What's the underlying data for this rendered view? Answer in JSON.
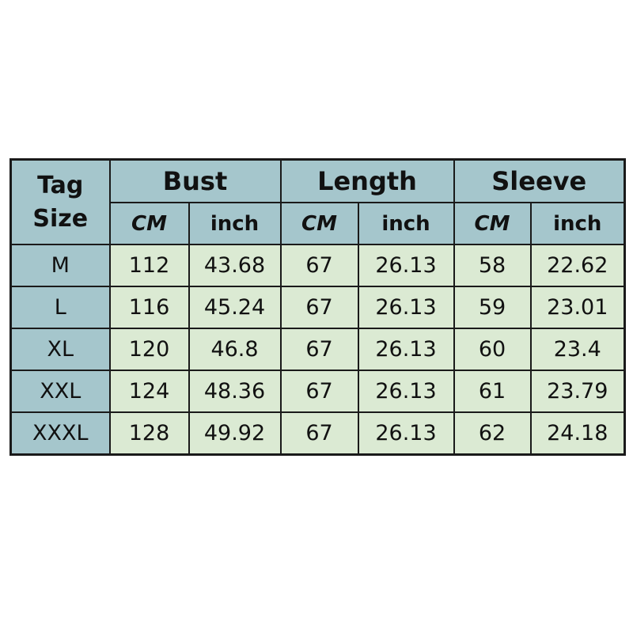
{
  "chart_data": {
    "type": "table",
    "header": {
      "tag_size": [
        "Tag",
        "Size"
      ],
      "groups": [
        "Bust",
        "Length",
        "Sleeve"
      ],
      "units": [
        "CM",
        "inch",
        "CM",
        "inch",
        "CM",
        "inch"
      ]
    },
    "rows": [
      [
        "M",
        "112",
        "43.68",
        "67",
        "26.13",
        "58",
        "22.62"
      ],
      [
        "L",
        "116",
        "45.24",
        "67",
        "26.13",
        "59",
        "23.01"
      ],
      [
        "XL",
        "120",
        "46.8",
        "67",
        "26.13",
        "60",
        "23.4"
      ],
      [
        "XXL",
        "124",
        "48.36",
        "67",
        "26.13",
        "61",
        "23.79"
      ],
      [
        "XXXL",
        "128",
        "49.92",
        "67",
        "26.13",
        "62",
        "24.18"
      ]
    ],
    "colors": {
      "header_bg": "#a5c6cc",
      "cell_bg": "#dbead3",
      "border": "#1a1a1a"
    }
  }
}
